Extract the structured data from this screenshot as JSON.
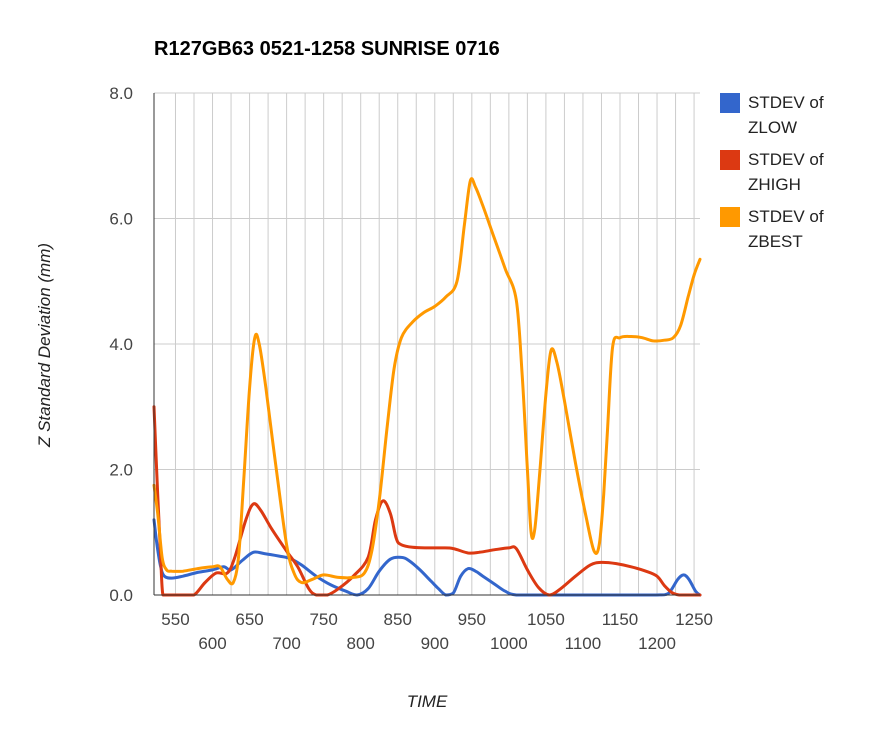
{
  "chart_data": {
    "type": "line",
    "title": "R127GB63 0521-1258 SUNRISE 0716",
    "xlabel": "TIME",
    "ylabel": "Z Standard Deviation (mm)",
    "xlim": [
      521,
      1258
    ],
    "ylim": [
      0,
      8
    ],
    "y_ticks": [
      "0.0",
      "2.0",
      "4.0",
      "6.0",
      "8.0"
    ],
    "x_ticks_upper": [
      "550",
      "650",
      "750",
      "850",
      "950",
      "1050",
      "1150",
      "1250"
    ],
    "x_ticks_lower": [
      "600",
      "700",
      "800",
      "900",
      "1000",
      "1100",
      "1200"
    ],
    "grid": true,
    "legend_position": "right",
    "series": [
      {
        "name": "STDEV of ZLOW",
        "color": "#3366cc",
        "points": [
          [
            521,
            1.2
          ],
          [
            525,
            0.8
          ],
          [
            530,
            0.45
          ],
          [
            535,
            0.3
          ],
          [
            545,
            0.27
          ],
          [
            560,
            0.3
          ],
          [
            580,
            0.36
          ],
          [
            600,
            0.4
          ],
          [
            615,
            0.45
          ],
          [
            625,
            0.4
          ],
          [
            640,
            0.55
          ],
          [
            655,
            0.68
          ],
          [
            670,
            0.66
          ],
          [
            690,
            0.62
          ],
          [
            705,
            0.58
          ],
          [
            720,
            0.48
          ],
          [
            740,
            0.3
          ],
          [
            760,
            0.16
          ],
          [
            780,
            0.06
          ],
          [
            795,
            0
          ],
          [
            810,
            0.1
          ],
          [
            825,
            0.38
          ],
          [
            840,
            0.57
          ],
          [
            855,
            0.6
          ],
          [
            865,
            0.55
          ],
          [
            880,
            0.4
          ],
          [
            895,
            0.22
          ],
          [
            905,
            0.1
          ],
          [
            915,
            0
          ],
          [
            925,
            0.03
          ],
          [
            935,
            0.3
          ],
          [
            945,
            0.42
          ],
          [
            955,
            0.38
          ],
          [
            965,
            0.3
          ],
          [
            980,
            0.18
          ],
          [
            995,
            0.06
          ],
          [
            1010,
            0
          ],
          [
            1050,
            0
          ],
          [
            1100,
            0
          ],
          [
            1150,
            0
          ],
          [
            1200,
            0
          ],
          [
            1215,
            0.02
          ],
          [
            1228,
            0.25
          ],
          [
            1236,
            0.32
          ],
          [
            1243,
            0.25
          ],
          [
            1252,
            0.06
          ],
          [
            1258,
            0
          ]
        ]
      },
      {
        "name": "STDEV of ZHIGH",
        "color": "#dc3912",
        "points": [
          [
            521,
            3.0
          ],
          [
            526,
            1.6
          ],
          [
            530,
            0.6
          ],
          [
            533,
            0
          ],
          [
            540,
            0
          ],
          [
            560,
            0
          ],
          [
            575,
            0
          ],
          [
            590,
            0.2
          ],
          [
            605,
            0.35
          ],
          [
            620,
            0.35
          ],
          [
            630,
            0.6
          ],
          [
            645,
            1.2
          ],
          [
            655,
            1.45
          ],
          [
            665,
            1.35
          ],
          [
            680,
            1.05
          ],
          [
            700,
            0.7
          ],
          [
            715,
            0.45
          ],
          [
            730,
            0.1
          ],
          [
            740,
            0
          ],
          [
            755,
            0
          ],
          [
            770,
            0.1
          ],
          [
            790,
            0.3
          ],
          [
            810,
            0.6
          ],
          [
            820,
            1.2
          ],
          [
            830,
            1.5
          ],
          [
            840,
            1.3
          ],
          [
            848,
            0.9
          ],
          [
            855,
            0.8
          ],
          [
            870,
            0.76
          ],
          [
            890,
            0.75
          ],
          [
            910,
            0.75
          ],
          [
            925,
            0.74
          ],
          [
            945,
            0.67
          ],
          [
            960,
            0.68
          ],
          [
            980,
            0.72
          ],
          [
            1000,
            0.75
          ],
          [
            1010,
            0.74
          ],
          [
            1025,
            0.4
          ],
          [
            1040,
            0.12
          ],
          [
            1055,
            0
          ],
          [
            1070,
            0.1
          ],
          [
            1090,
            0.3
          ],
          [
            1110,
            0.48
          ],
          [
            1125,
            0.52
          ],
          [
            1145,
            0.5
          ],
          [
            1165,
            0.45
          ],
          [
            1185,
            0.38
          ],
          [
            1200,
            0.3
          ],
          [
            1210,
            0.15
          ],
          [
            1220,
            0.04
          ],
          [
            1230,
            0
          ],
          [
            1245,
            0
          ],
          [
            1258,
            0
          ]
        ]
      },
      {
        "name": "STDEV of ZBEST",
        "color": "#ff9900",
        "points": [
          [
            521,
            1.75
          ],
          [
            526,
            1.3
          ],
          [
            532,
            0.6
          ],
          [
            538,
            0.4
          ],
          [
            545,
            0.38
          ],
          [
            560,
            0.38
          ],
          [
            580,
            0.42
          ],
          [
            600,
            0.45
          ],
          [
            610,
            0.45
          ],
          [
            620,
            0.25
          ],
          [
            628,
            0.2
          ],
          [
            635,
            0.6
          ],
          [
            642,
            1.8
          ],
          [
            650,
            3.3
          ],
          [
            657,
            4.1
          ],
          [
            663,
            4.0
          ],
          [
            672,
            3.3
          ],
          [
            685,
            2.1
          ],
          [
            700,
            0.8
          ],
          [
            710,
            0.35
          ],
          [
            720,
            0.2
          ],
          [
            735,
            0.25
          ],
          [
            750,
            0.32
          ],
          [
            770,
            0.28
          ],
          [
            790,
            0.28
          ],
          [
            805,
            0.35
          ],
          [
            815,
            0.7
          ],
          [
            825,
            1.5
          ],
          [
            835,
            2.6
          ],
          [
            845,
            3.6
          ],
          [
            855,
            4.1
          ],
          [
            870,
            4.35
          ],
          [
            885,
            4.5
          ],
          [
            900,
            4.6
          ],
          [
            915,
            4.75
          ],
          [
            930,
            5.0
          ],
          [
            940,
            5.9
          ],
          [
            948,
            6.6
          ],
          [
            955,
            6.5
          ],
          [
            965,
            6.2
          ],
          [
            980,
            5.7
          ],
          [
            995,
            5.2
          ],
          [
            1010,
            4.7
          ],
          [
            1018,
            3.5
          ],
          [
            1025,
            2.0
          ],
          [
            1030,
            1.0
          ],
          [
            1035,
            1.05
          ],
          [
            1042,
            2.0
          ],
          [
            1050,
            3.2
          ],
          [
            1057,
            3.9
          ],
          [
            1065,
            3.7
          ],
          [
            1075,
            3.1
          ],
          [
            1090,
            2.1
          ],
          [
            1105,
            1.2
          ],
          [
            1115,
            0.7
          ],
          [
            1122,
            0.8
          ],
          [
            1128,
            1.6
          ],
          [
            1133,
            2.6
          ],
          [
            1140,
            3.95
          ],
          [
            1150,
            4.1
          ],
          [
            1165,
            4.12
          ],
          [
            1180,
            4.1
          ],
          [
            1195,
            4.05
          ],
          [
            1210,
            4.06
          ],
          [
            1222,
            4.1
          ],
          [
            1232,
            4.3
          ],
          [
            1242,
            4.75
          ],
          [
            1250,
            5.1
          ],
          [
            1258,
            5.35
          ]
        ]
      }
    ]
  }
}
